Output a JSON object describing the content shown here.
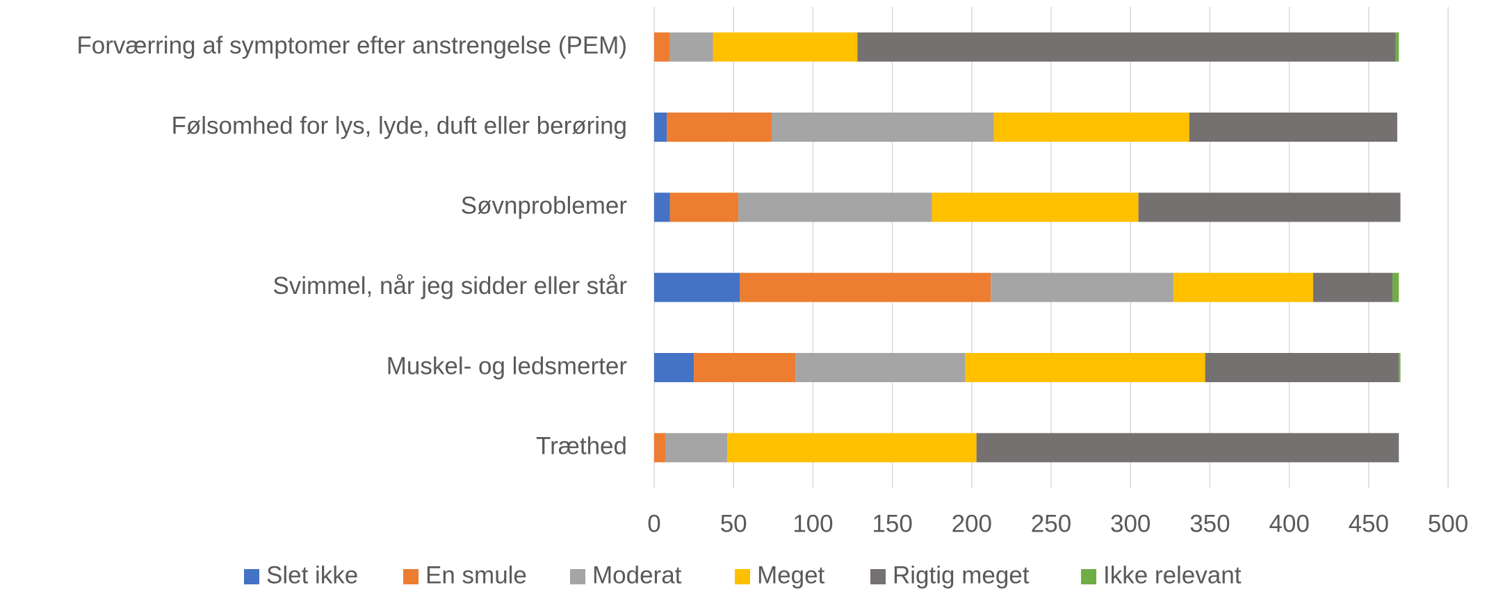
{
  "chart_data": {
    "type": "stacked_barh",
    "categories": [
      "Forværring af symptomer efter anstrengelse (PEM)",
      "Følsomhed for lys, lyde, duft eller berøring",
      "Søvnproblemer",
      "Svimmel, når jeg sidder eller står",
      "Muskel- og ledsmerter",
      "Træthed"
    ],
    "series": [
      {
        "name": "Slet ikke",
        "color": "#4472c4",
        "values": [
          0,
          8,
          10,
          54,
          25,
          0
        ]
      },
      {
        "name": "En smule",
        "color": "#ed7d31",
        "values": [
          10,
          66,
          43,
          158,
          64,
          7
        ]
      },
      {
        "name": "Moderat",
        "color": "#a5a5a5",
        "values": [
          27,
          140,
          122,
          115,
          107,
          39
        ]
      },
      {
        "name": "Meget",
        "color": "#ffc000",
        "values": [
          91,
          123,
          130,
          88,
          151,
          157
        ]
      },
      {
        "name": "Rigtig meget",
        "color": "#767171",
        "values": [
          339,
          131,
          165,
          50,
          122,
          266
        ]
      },
      {
        "name": "Ikke relevant",
        "color": "#70ad47",
        "values": [
          2,
          0,
          0,
          4,
          1,
          0
        ]
      }
    ],
    "xlim": [
      0,
      500
    ],
    "xticks": [
      0,
      50,
      100,
      150,
      200,
      250,
      300,
      350,
      400,
      450,
      500
    ],
    "grid": true,
    "legend": "bottom"
  }
}
